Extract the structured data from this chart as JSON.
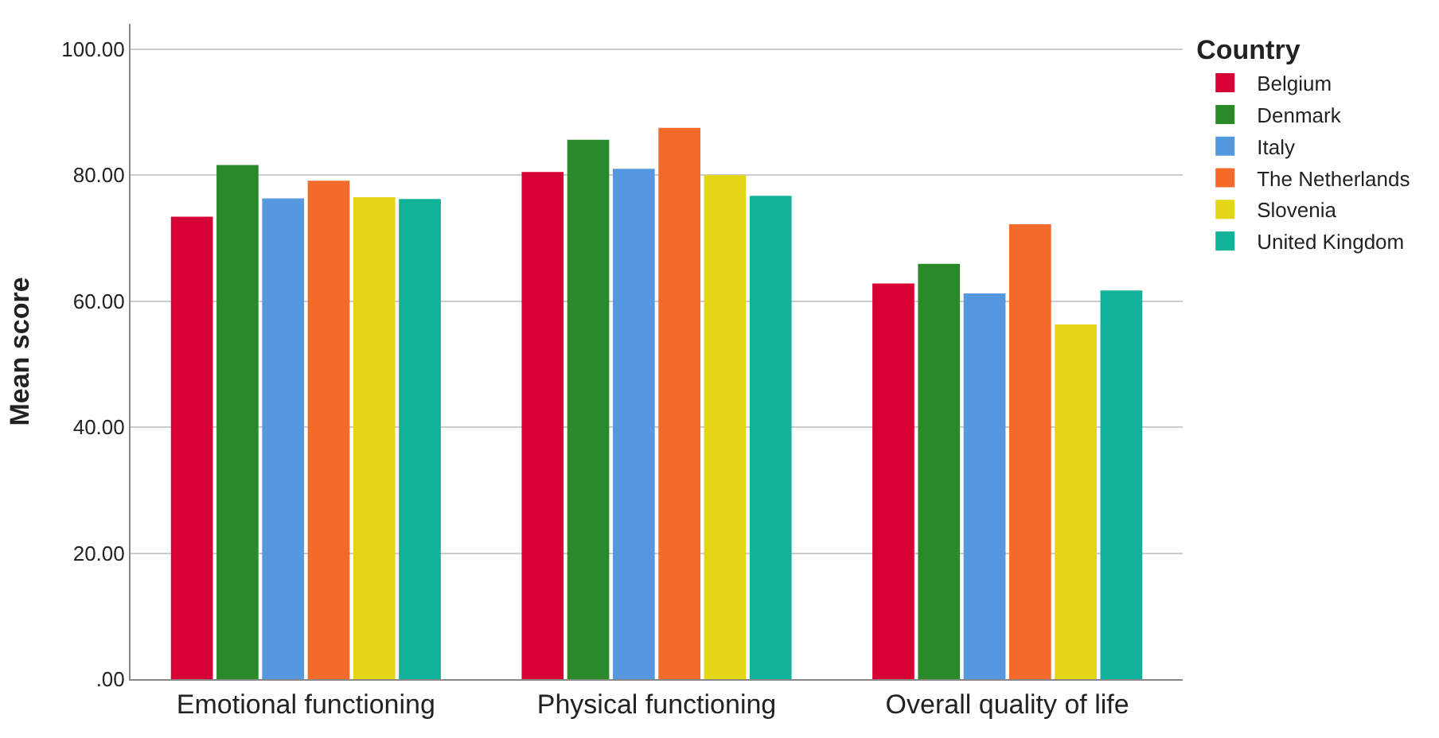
{
  "chart_data": {
    "type": "bar",
    "ylabel": "Mean score",
    "legend_title": "Country",
    "categories": [
      "Emotional functioning",
      "Physical functioning",
      "Overall quality of life"
    ],
    "series": [
      {
        "name": "Belgium",
        "color": "#d70035",
        "values": [
          73.4,
          80.5,
          62.8
        ]
      },
      {
        "name": "Denmark",
        "color": "#2a8a2a",
        "values": [
          81.6,
          85.6,
          65.9
        ]
      },
      {
        "name": "Italy",
        "color": "#5698e0",
        "values": [
          76.3,
          81.0,
          61.2
        ]
      },
      {
        "name": "The Netherlands",
        "color": "#f26b2a",
        "values": [
          79.1,
          87.5,
          72.2
        ]
      },
      {
        "name": "Slovenia",
        "color": "#e2d616",
        "values": [
          76.5,
          80.0,
          56.3
        ]
      },
      {
        "name": "United Kingdom",
        "color": "#10b29a",
        "values": [
          76.2,
          76.7,
          61.7
        ]
      }
    ],
    "ylim": [
      0,
      104
    ],
    "yticks": [
      {
        "value": 0,
        "label": ".00"
      },
      {
        "value": 20,
        "label": "20.00"
      },
      {
        "value": 40,
        "label": "40.00"
      },
      {
        "value": 60,
        "label": "60.00"
      },
      {
        "value": 80,
        "label": "80.00"
      },
      {
        "value": 100,
        "label": "100.00"
      }
    ],
    "grid": "y",
    "legend": "top right"
  }
}
